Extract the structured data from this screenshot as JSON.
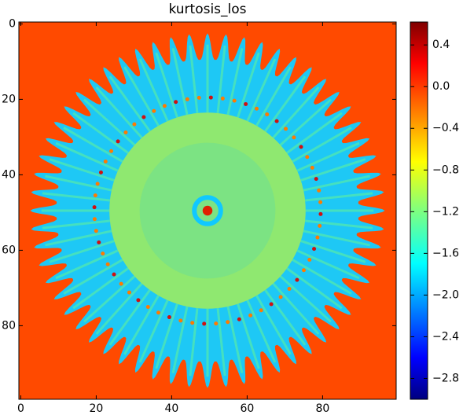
{
  "chart_data": {
    "type": "heatmap",
    "title": "kurtosis_los",
    "xlim": [
      -0.5,
      99.5
    ],
    "ylim": [
      99.5,
      -0.5
    ],
    "xticks": [
      0,
      20,
      40,
      60,
      80
    ],
    "yticks": [
      0,
      20,
      40,
      60,
      80
    ],
    "clim": [
      -3.0,
      0.62
    ],
    "colorbar_ticks": [
      0.4,
      {
        "value": 0,
        "label": "0.0"
      },
      {
        "value": -0.4,
        "label": "−0.4"
      },
      {
        "value": -0.8,
        "label": "−0.8"
      },
      {
        "value": -1.2,
        "label": "−1.2"
      },
      {
        "value": -1.6,
        "label": "−1.6"
      },
      {
        "value": -2.0,
        "label": "−2.0"
      },
      {
        "value": -2.4,
        "label": "−2.4"
      },
      {
        "value": -2.8,
        "label": "−2.8"
      }
    ],
    "colormap": "jet"
  }
}
